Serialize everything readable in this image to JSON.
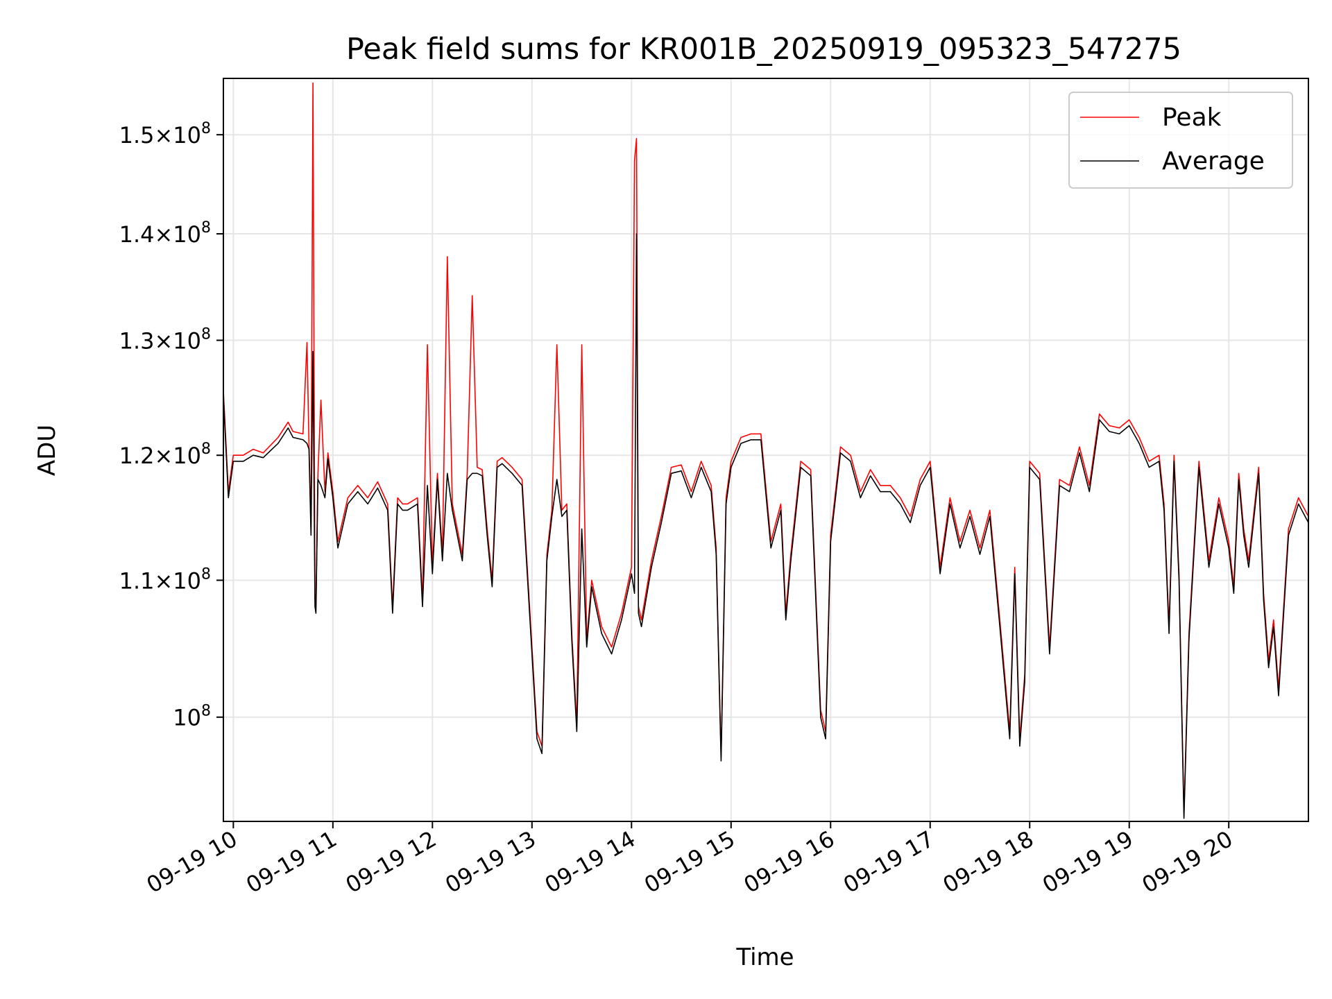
{
  "chart_data": {
    "type": "line",
    "title": "Peak field sums for KR001B_20250919_095323_547275",
    "xlabel": "Time",
    "ylabel": "ADU",
    "yscale": "log",
    "grid": true,
    "legend_position": "top-right",
    "x_tick_labels": [
      "09-19 10",
      "09-19 11",
      "09-19 12",
      "09-19 13",
      "09-19 14",
      "09-19 15",
      "09-19 16",
      "09-19 17",
      "09-19 18",
      "09-19 19",
      "09-19 20"
    ],
    "y_tick_labels": [
      {
        "value": 100000000,
        "mantissa": "",
        "exp": "8"
      },
      {
        "value": 110000000,
        "mantissa": "1.1",
        "exp": "8"
      },
      {
        "value": 120000000,
        "mantissa": "1.2",
        "exp": "8"
      },
      {
        "value": 130000000,
        "mantissa": "1.3",
        "exp": "8"
      },
      {
        "value": 140000000,
        "mantissa": "1.4",
        "exp": "8"
      },
      {
        "value": 150000000,
        "mantissa": "1.5",
        "exp": "8"
      }
    ],
    "xlim": [
      9.9,
      20.8
    ],
    "ylim": [
      93000000,
      156000000
    ],
    "series": [
      {
        "name": "Peak",
        "color": "#ff0000",
        "x": [
          9.9,
          9.95,
          10.0,
          10.1,
          10.2,
          10.3,
          10.45,
          10.55,
          10.6,
          10.7,
          10.74,
          10.76,
          10.78,
          10.8,
          10.82,
          10.83,
          10.85,
          10.88,
          10.92,
          10.95,
          11.0,
          11.05,
          11.15,
          11.25,
          11.35,
          11.45,
          11.55,
          11.6,
          11.65,
          11.7,
          11.75,
          11.85,
          11.9,
          11.95,
          12.0,
          12.05,
          12.1,
          12.15,
          12.2,
          12.3,
          12.35,
          12.4,
          12.45,
          12.5,
          12.55,
          12.6,
          12.65,
          12.7,
          12.8,
          12.9,
          13.0,
          13.05,
          13.1,
          13.15,
          13.2,
          13.25,
          13.3,
          13.35,
          13.4,
          13.45,
          13.5,
          13.55,
          13.6,
          13.7,
          13.8,
          13.9,
          14.0,
          14.03,
          14.05,
          14.07,
          14.1,
          14.2,
          14.3,
          14.4,
          14.5,
          14.6,
          14.7,
          14.8,
          14.85,
          14.9,
          14.95,
          15.0,
          15.1,
          15.2,
          15.3,
          15.4,
          15.5,
          15.55,
          15.6,
          15.7,
          15.8,
          15.9,
          15.95,
          16.0,
          16.1,
          16.2,
          16.3,
          16.4,
          16.5,
          16.6,
          16.7,
          16.8,
          16.9,
          17.0,
          17.1,
          17.2,
          17.3,
          17.4,
          17.5,
          17.6,
          17.7,
          17.8,
          17.85,
          17.9,
          17.95,
          18.0,
          18.1,
          18.2,
          18.3,
          18.4,
          18.5,
          18.6,
          18.7,
          18.8,
          18.9,
          19.0,
          19.1,
          19.2,
          19.3,
          19.35,
          19.4,
          19.45,
          19.5,
          19.55,
          19.6,
          19.7,
          19.8,
          19.9,
          20.0,
          20.05,
          20.1,
          20.15,
          20.2,
          20.3,
          20.35,
          20.4,
          20.45,
          20.5,
          20.6,
          20.7,
          20.8
        ],
        "values": [
          125500000,
          117000000,
          120000000,
          120000000,
          120500000,
          120200000,
          121500000,
          122800000,
          122000000,
          121800000,
          129800000,
          121000000,
          114000000,
          155500000,
          108500000,
          108000000,
          118500000,
          124700000,
          117000000,
          120200000,
          117000000,
          113000000,
          116500000,
          117500000,
          116500000,
          117800000,
          116000000,
          108000000,
          116500000,
          116000000,
          116000000,
          116500000,
          108500000,
          129600000,
          111000000,
          118500000,
          112000000,
          137800000,
          116000000,
          112000000,
          118500000,
          134100000,
          119000000,
          118800000,
          114000000,
          110000000,
          119500000,
          119800000,
          119000000,
          118000000,
          105000000,
          99000000,
          98000000,
          112000000,
          115500000,
          129600000,
          115500000,
          116000000,
          106000000,
          99500000,
          129600000,
          105500000,
          110000000,
          106500000,
          105000000,
          107500000,
          111000000,
          147300000,
          149600000,
          108000000,
          107000000,
          111500000,
          115000000,
          119000000,
          119200000,
          117000000,
          119500000,
          117500000,
          112500000,
          97300000,
          116500000,
          119500000,
          121500000,
          121800000,
          121800000,
          113000000,
          116000000,
          107500000,
          112000000,
          119500000,
          118800000,
          100500000,
          99000000,
          113500000,
          120700000,
          120000000,
          117000000,
          118800000,
          117500000,
          117500000,
          116500000,
          115000000,
          118000000,
          119500000,
          111000000,
          116500000,
          113000000,
          115500000,
          112500000,
          115500000,
          107000000,
          99000000,
          111000000,
          98500000,
          103000000,
          119500000,
          118500000,
          105000000,
          118000000,
          117500000,
          120700000,
          117500000,
          123500000,
          122500000,
          122300000,
          123000000,
          121500000,
          119500000,
          120000000,
          116000000,
          106500000,
          120000000,
          110500000,
          93500000,
          106000000,
          119500000,
          111500000,
          116500000,
          113000000,
          109500000,
          118500000,
          114000000,
          111500000,
          119000000,
          109000000,
          104000000,
          107000000,
          102000000,
          114000000,
          116500000,
          115000000
        ]
      },
      {
        "name": "Average",
        "color": "#000000",
        "x": [
          9.9,
          9.95,
          10.0,
          10.1,
          10.2,
          10.3,
          10.45,
          10.55,
          10.6,
          10.7,
          10.74,
          10.76,
          10.78,
          10.8,
          10.82,
          10.83,
          10.85,
          10.88,
          10.92,
          10.95,
          11.0,
          11.05,
          11.15,
          11.25,
          11.35,
          11.45,
          11.55,
          11.6,
          11.65,
          11.7,
          11.75,
          11.85,
          11.9,
          11.95,
          12.0,
          12.05,
          12.1,
          12.15,
          12.2,
          12.3,
          12.35,
          12.4,
          12.45,
          12.5,
          12.55,
          12.6,
          12.65,
          12.7,
          12.8,
          12.9,
          13.0,
          13.05,
          13.1,
          13.15,
          13.2,
          13.25,
          13.3,
          13.35,
          13.4,
          13.45,
          13.5,
          13.55,
          13.6,
          13.7,
          13.8,
          13.9,
          14.0,
          14.03,
          14.05,
          14.07,
          14.1,
          14.2,
          14.3,
          14.4,
          14.5,
          14.6,
          14.7,
          14.8,
          14.85,
          14.9,
          14.95,
          15.0,
          15.1,
          15.2,
          15.3,
          15.4,
          15.5,
          15.55,
          15.6,
          15.7,
          15.8,
          15.9,
          15.95,
          16.0,
          16.1,
          16.2,
          16.3,
          16.4,
          16.5,
          16.6,
          16.7,
          16.8,
          16.9,
          17.0,
          17.1,
          17.2,
          17.3,
          17.4,
          17.5,
          17.6,
          17.7,
          17.8,
          17.85,
          17.9,
          17.95,
          18.0,
          18.1,
          18.2,
          18.3,
          18.4,
          18.5,
          18.6,
          18.7,
          18.8,
          18.9,
          19.0,
          19.1,
          19.2,
          19.3,
          19.35,
          19.4,
          19.45,
          19.5,
          19.55,
          19.6,
          19.7,
          19.8,
          19.9,
          20.0,
          20.05,
          20.1,
          20.15,
          20.2,
          20.3,
          20.35,
          20.4,
          20.45,
          20.5,
          20.6,
          20.7,
          20.8
        ],
        "values": [
          125000000,
          116500000,
          119500000,
          119500000,
          120000000,
          119800000,
          121000000,
          122300000,
          121500000,
          121300000,
          121000000,
          120500000,
          113500000,
          129000000,
          108000000,
          107500000,
          118000000,
          117500000,
          116500000,
          119700000,
          116500000,
          112500000,
          116000000,
          117000000,
          116000000,
          117300000,
          115500000,
          107500000,
          116000000,
          115500000,
          115500000,
          116000000,
          108000000,
          117500000,
          110500000,
          118000000,
          111500000,
          118500000,
          115500000,
          111500000,
          118000000,
          118500000,
          118500000,
          118300000,
          113500000,
          109500000,
          119000000,
          119300000,
          118500000,
          117500000,
          104500000,
          98500000,
          97500000,
          111500000,
          115000000,
          118000000,
          115000000,
          115500000,
          105500000,
          99000000,
          114000000,
          105000000,
          109500000,
          106000000,
          104500000,
          107000000,
          110500000,
          109000000,
          140000000,
          107500000,
          106500000,
          111000000,
          114500000,
          118500000,
          118700000,
          116500000,
          119000000,
          117000000,
          112000000,
          97000000,
          116000000,
          119000000,
          121000000,
          121300000,
          121300000,
          112500000,
          115500000,
          107000000,
          111500000,
          119000000,
          118300000,
          100000000,
          98500000,
          113000000,
          120200000,
          119500000,
          116500000,
          118300000,
          117000000,
          117000000,
          116000000,
          114500000,
          117500000,
          119000000,
          110500000,
          116000000,
          112500000,
          115000000,
          112000000,
          115000000,
          106500000,
          98500000,
          110500000,
          98000000,
          102500000,
          119000000,
          118000000,
          104500000,
          117500000,
          117000000,
          120200000,
          117000000,
          123000000,
          122000000,
          121800000,
          122500000,
          121000000,
          119000000,
          119500000,
          115500000,
          106000000,
          119500000,
          110000000,
          93200000,
          105500000,
          119000000,
          111000000,
          116000000,
          112500000,
          109000000,
          118000000,
          113500000,
          111000000,
          118500000,
          108500000,
          103500000,
          106500000,
          101500000,
          113500000,
          116000000,
          114500000
        ]
      }
    ]
  }
}
